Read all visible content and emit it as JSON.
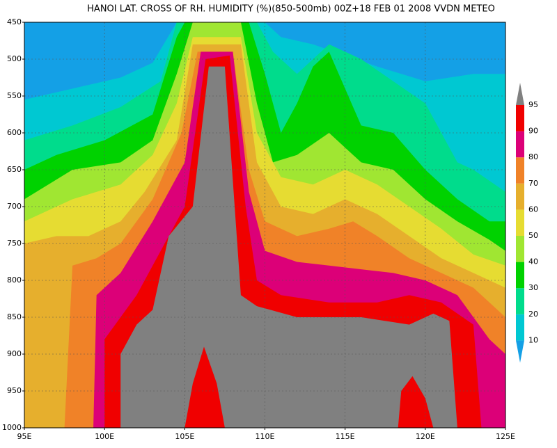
{
  "chart_data": {
    "type": "contour",
    "title": "HANOI LAT. CROSS OF RH. HUMIDITY (%)(850-500mb) 00Z+18 FEB 01 2008 VVDN METEO",
    "xlim": [
      95,
      125
    ],
    "xticks": [
      {
        "value": 95,
        "label": "95E"
      },
      {
        "value": 100,
        "label": "100E"
      },
      {
        "value": 105,
        "label": "105E"
      },
      {
        "value": 110,
        "label": "110E"
      },
      {
        "value": 115,
        "label": "115E"
      },
      {
        "value": 120,
        "label": "120E"
      },
      {
        "value": 125,
        "label": "125E"
      }
    ],
    "ylim": [
      450,
      1000
    ],
    "y_inverted": true,
    "yticks": [
      450,
      500,
      550,
      600,
      650,
      700,
      750,
      800,
      850,
      900,
      950,
      1000
    ],
    "grid": true,
    "colorbar": {
      "levels": [
        10,
        20,
        30,
        40,
        50,
        60,
        70,
        80,
        90,
        95
      ],
      "colors": [
        "#14a0e6",
        "#00c8d2",
        "#00dc8c",
        "#00d200",
        "#a0e632",
        "#e6dc32",
        "#e6af2d",
        "#f08228",
        "#dc0078",
        "#f00000",
        "#808080"
      ]
    }
  }
}
